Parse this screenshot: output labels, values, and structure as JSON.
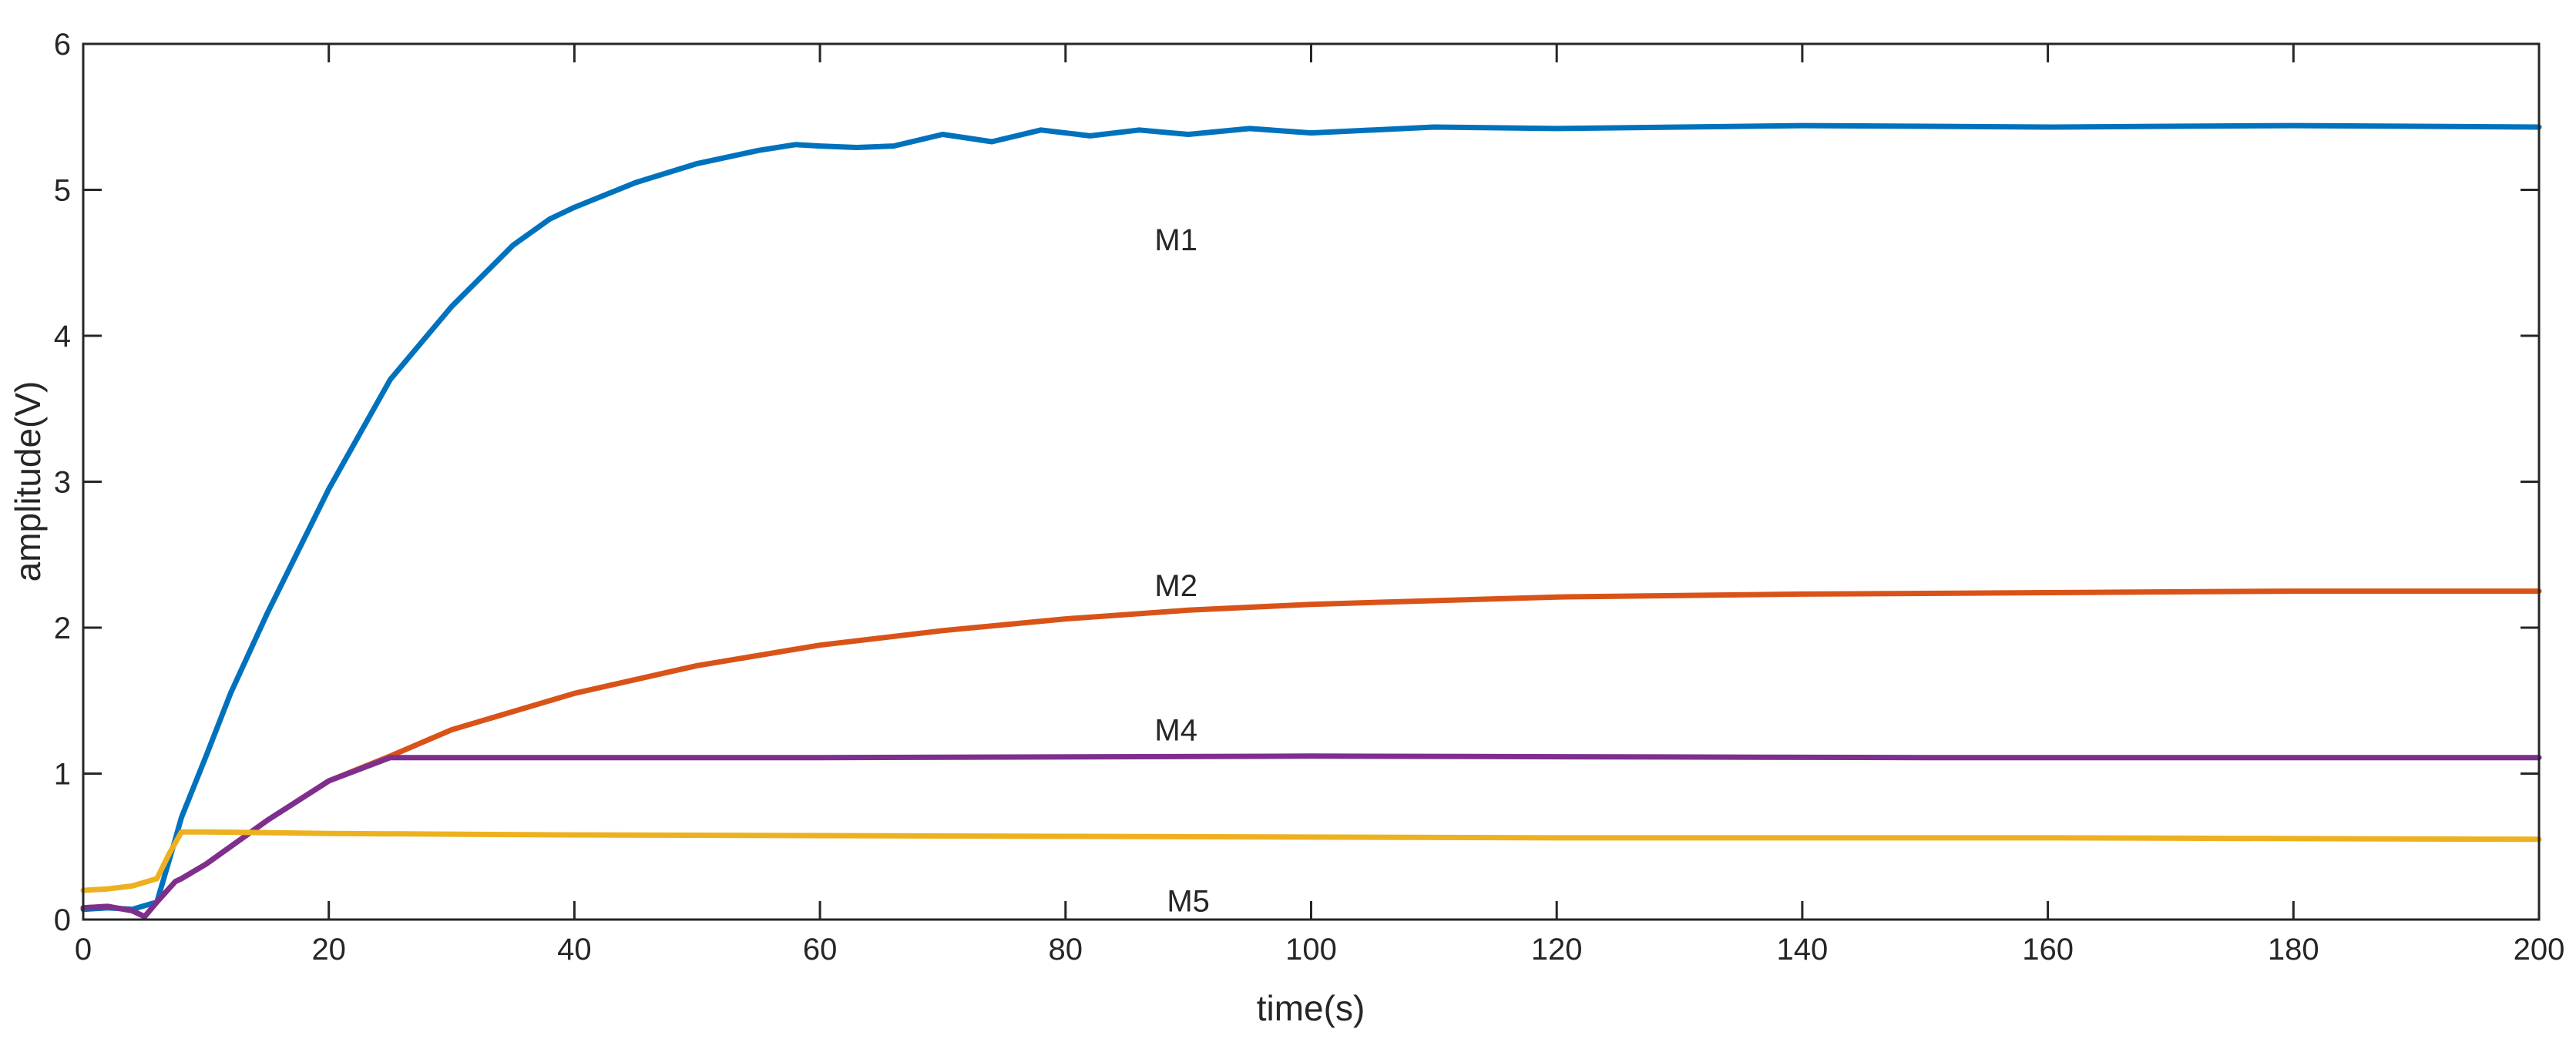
{
  "chart_data": {
    "type": "line",
    "title": "",
    "xlabel": "time(s)",
    "ylabel": "amplitude(V)",
    "xlim": [
      0,
      200
    ],
    "ylim": [
      0,
      6
    ],
    "xticks": [
      0,
      20,
      40,
      60,
      80,
      100,
      120,
      140,
      160,
      180,
      200
    ],
    "yticks": [
      0,
      1,
      2,
      3,
      4,
      5,
      6
    ],
    "grid": false,
    "series": [
      {
        "name": "M1",
        "color": "#0072BD",
        "x": [
          0,
          2,
          4,
          6,
          7.5,
          8,
          10,
          12,
          15,
          20,
          25,
          30,
          35,
          38,
          40,
          45,
          50,
          55,
          58,
          60,
          63,
          66,
          70,
          74,
          78,
          82,
          86,
          90,
          95,
          100,
          110,
          120,
          140,
          160,
          180,
          200
        ],
        "y": [
          0.07,
          0.08,
          0.07,
          0.12,
          0.55,
          0.7,
          1.12,
          1.55,
          2.1,
          2.95,
          3.7,
          4.2,
          4.62,
          4.8,
          4.88,
          5.05,
          5.18,
          5.27,
          5.31,
          5.3,
          5.29,
          5.3,
          5.38,
          5.33,
          5.41,
          5.37,
          5.41,
          5.38,
          5.42,
          5.39,
          5.43,
          5.42,
          5.44,
          5.43,
          5.44,
          5.43
        ]
      },
      {
        "name": "M2",
        "color": "#D95319",
        "x": [
          0,
          2,
          4,
          5,
          6,
          7.5,
          8,
          10,
          15,
          20,
          25,
          30,
          40,
          50,
          60,
          70,
          80,
          90,
          100,
          120,
          140,
          160,
          180,
          200
        ],
        "y": [
          0.08,
          0.09,
          0.06,
          0.02,
          0.12,
          0.26,
          0.28,
          0.38,
          0.68,
          0.95,
          1.12,
          1.3,
          1.55,
          1.74,
          1.88,
          1.98,
          2.06,
          2.12,
          2.16,
          2.21,
          2.23,
          2.24,
          2.25,
          2.25
        ]
      },
      {
        "name": "M4",
        "color": "#7E2F8E",
        "x": [
          0,
          2,
          4,
          5,
          6,
          7.5,
          8,
          10,
          15,
          20,
          25,
          30,
          60,
          100,
          150,
          200
        ],
        "y": [
          0.08,
          0.09,
          0.06,
          0.02,
          0.12,
          0.26,
          0.28,
          0.38,
          0.68,
          0.95,
          1.11,
          1.11,
          1.11,
          1.12,
          1.11,
          1.11
        ]
      },
      {
        "name": "M5",
        "color": "#EDB120",
        "x": [
          0,
          2,
          4,
          6,
          7,
          8,
          10,
          20,
          40,
          80,
          120,
          160,
          200
        ],
        "y": [
          0.2,
          0.21,
          0.23,
          0.28,
          0.45,
          0.6,
          0.6,
          0.59,
          0.58,
          0.57,
          0.56,
          0.56,
          0.55
        ]
      }
    ],
    "annotations": [
      {
        "text": "M1",
        "x": 89,
        "y": 4.66
      },
      {
        "text": "M2",
        "x": 89,
        "y": 2.29
      },
      {
        "text": "M4",
        "x": 89,
        "y": 1.3
      },
      {
        "text": "M5",
        "x": 90,
        "y": 0.13
      }
    ]
  }
}
